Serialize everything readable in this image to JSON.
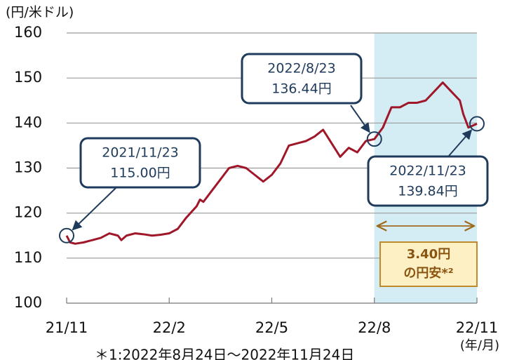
{
  "chart_data": {
    "type": "line",
    "y_label": "(円/米ドル)",
    "x_label": "(年/月)",
    "footnote": "＊1:2022年8月24日〜2022年11月24日",
    "color": "#a0172a",
    "x": [
      0,
      0.1,
      0.25,
      0.5,
      0.75,
      1.0,
      1.25,
      1.5,
      1.6,
      1.75,
      2.0,
      2.25,
      2.5,
      2.75,
      3.0,
      3.25,
      3.5,
      3.8,
      3.9,
      4.0,
      4.25,
      4.5,
      4.75,
      5.0,
      5.25,
      5.5,
      5.75,
      6.0,
      6.25,
      6.5,
      6.75,
      7.0,
      7.25,
      7.5,
      7.75,
      8.0,
      8.25,
      8.5,
      8.75,
      9.0,
      9.25,
      9.5,
      9.75,
      10.0,
      10.25,
      10.5,
      10.75,
      11.0,
      11.25,
      11.5,
      11.6,
      11.75,
      12.0
    ],
    "values": [
      115.0,
      113.5,
      113.2,
      113.5,
      114.0,
      114.5,
      115.5,
      115.0,
      114.0,
      115.0,
      115.5,
      115.3,
      115.0,
      115.2,
      115.5,
      116.5,
      119.0,
      121.5,
      123.0,
      122.5,
      125.0,
      127.5,
      130.0,
      130.5,
      130.0,
      128.5,
      127.0,
      128.5,
      131.0,
      135.0,
      135.5,
      136.0,
      137.0,
      138.5,
      135.5,
      132.5,
      134.5,
      133.5,
      136.0,
      136.44,
      139.0,
      143.5,
      143.5,
      144.5,
      144.5,
      145.0,
      147.0,
      149.0,
      147.0,
      145.0,
      142.0,
      139.0,
      139.84
    ],
    "xlim": [
      0,
      12
    ],
    "xticks": [
      {
        "value": 0,
        "label": "21/11"
      },
      {
        "value": 3,
        "label": "22/2"
      },
      {
        "value": 6,
        "label": "22/5"
      },
      {
        "value": 9,
        "label": "22/8"
      },
      {
        "value": 12,
        "label": "22/11"
      }
    ],
    "ylim": [
      100,
      160
    ],
    "yticks": [
      100,
      110,
      120,
      130,
      140,
      150,
      160
    ],
    "grid": true,
    "highlight": {
      "range": [
        9,
        12
      ],
      "color": "#d4edf5"
    },
    "annotations": [
      {
        "x": 0,
        "value": 115.0,
        "date": "2021/11/23",
        "value_label": "115.00円"
      },
      {
        "x": 9,
        "value": 136.44,
        "date": "2022/8/23",
        "value_label": "136.44円"
      },
      {
        "x": 12,
        "value": 139.84,
        "date": "2022/11/23",
        "value_label": "139.84円"
      }
    ],
    "summary": [
      "3.40円",
      "の円安*²"
    ]
  }
}
